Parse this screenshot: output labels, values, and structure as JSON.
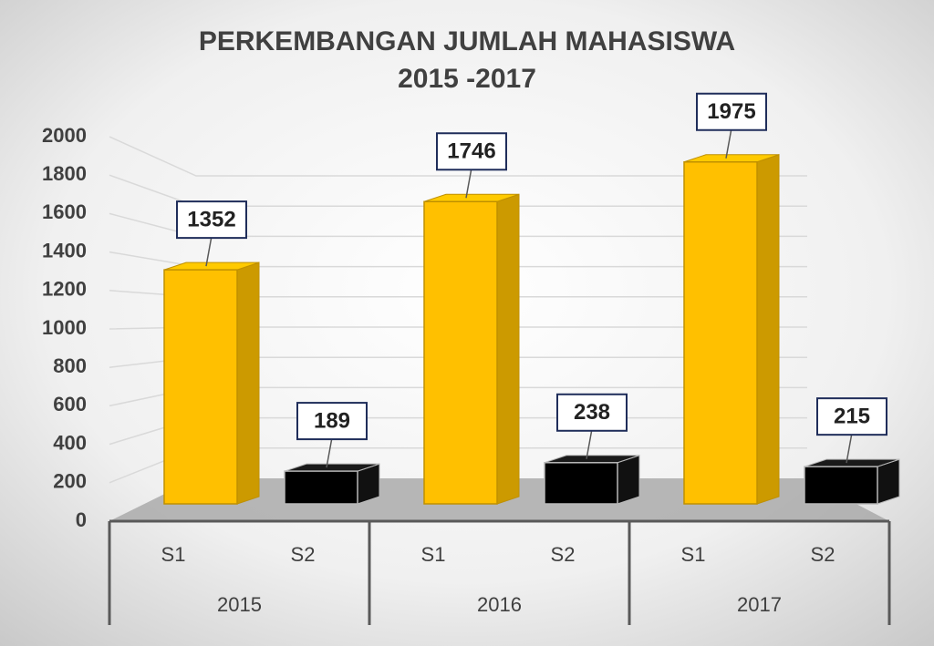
{
  "chart_data": {
    "type": "bar3d",
    "title": "PERKEMBANGAN JUMLAH MAHASISWA",
    "subtitle": "2015 -2017",
    "groups": [
      "2015",
      "2016",
      "2017"
    ],
    "series": [
      {
        "name": "S1",
        "color": "#ffc000",
        "values": [
          1352,
          1746,
          1975
        ]
      },
      {
        "name": "S2",
        "color": "#000000",
        "values": [
          189,
          238,
          215
        ]
      }
    ],
    "ylim": [
      0,
      2000
    ],
    "yticks": [
      0,
      200,
      400,
      600,
      800,
      1000,
      1200,
      1400,
      1600,
      1800,
      2000
    ],
    "grid": true
  }
}
